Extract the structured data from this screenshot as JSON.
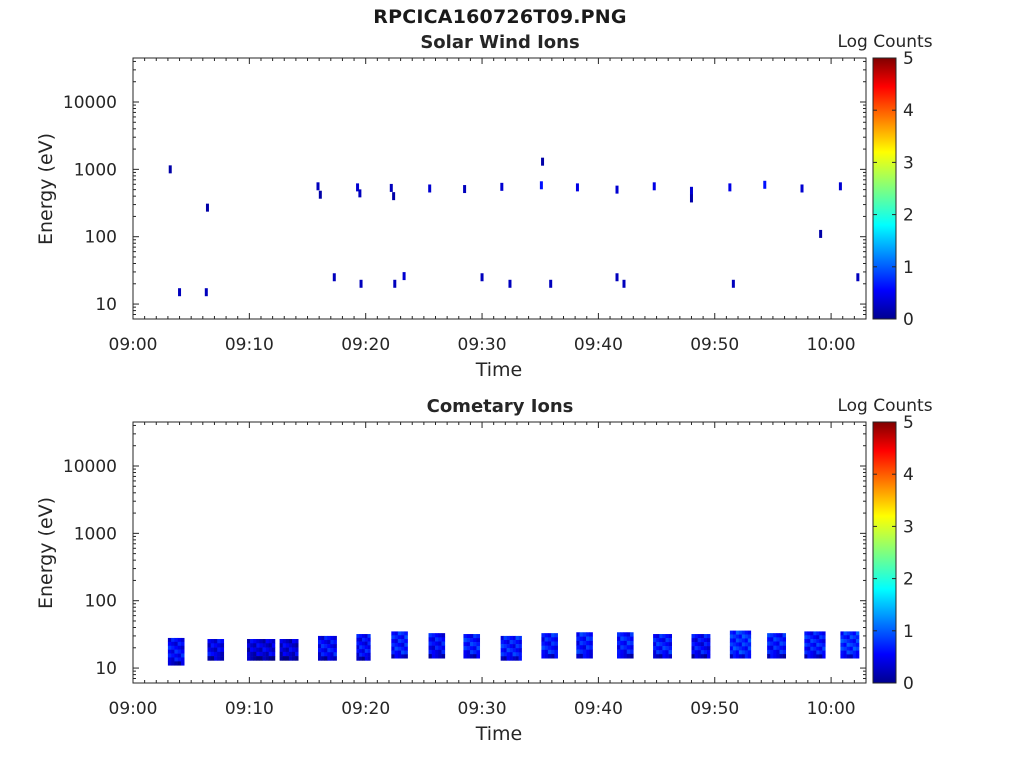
{
  "figure_title": "RPCICA160726T09.PNG",
  "chart_data": [
    {
      "type": "heatmap",
      "title": "Solar Wind Ions",
      "xlabel": "Time",
      "ylabel": "Energy (eV)",
      "xlim": [
        "09:00",
        "10:03"
      ],
      "ylim": [
        6,
        45000
      ],
      "y_scale": "log",
      "x_ticks": [
        "09:00",
        "09:10",
        "09:20",
        "09:30",
        "09:40",
        "09:50",
        "10:00"
      ],
      "y_ticks": [
        "10",
        "100",
        "1000",
        "10000"
      ],
      "grid": false,
      "colorbar": {
        "label": "Log Counts",
        "min": 0,
        "max": 5,
        "ticks": [
          "0",
          "1",
          "2",
          "3",
          "4",
          "5"
        ],
        "colormap": "jet"
      },
      "points": [
        {
          "t": "09:03.2",
          "e": 1000,
          "v": 0.2
        },
        {
          "t": "09:04.0",
          "e": 15,
          "v": 0.3
        },
        {
          "t": "09:06.3",
          "e": 15,
          "v": 0.3
        },
        {
          "t": "09:06.4",
          "e": 270,
          "v": 0.2
        },
        {
          "t": "09:15.9",
          "e": 560,
          "v": 0.3
        },
        {
          "t": "09:16.1",
          "e": 420,
          "v": 0.2
        },
        {
          "t": "09:17.3",
          "e": 25,
          "v": 0.3
        },
        {
          "t": "09:19.3",
          "e": 540,
          "v": 0.4
        },
        {
          "t": "09:19.5",
          "e": 440,
          "v": 0.3
        },
        {
          "t": "09:19.6",
          "e": 20,
          "v": 0.3
        },
        {
          "t": "09:22.2",
          "e": 530,
          "v": 0.3
        },
        {
          "t": "09:22.4",
          "e": 400,
          "v": 0.2
        },
        {
          "t": "09:22.5",
          "e": 20,
          "v": 0.3
        },
        {
          "t": "09:23.3",
          "e": 26,
          "v": 0.4
        },
        {
          "t": "09:25.5",
          "e": 520,
          "v": 0.4
        },
        {
          "t": "09:28.5",
          "e": 510,
          "v": 0.3
        },
        {
          "t": "09:30.0",
          "e": 25,
          "v": 0.3
        },
        {
          "t": "09:31.7",
          "e": 550,
          "v": 0.4
        },
        {
          "t": "09:32.4",
          "e": 20,
          "v": 0.3
        },
        {
          "t": "09:35.1",
          "e": 580,
          "v": 0.7
        },
        {
          "t": "09:35.2",
          "e": 1300,
          "v": 0.2
        },
        {
          "t": "09:35.9",
          "e": 20,
          "v": 0.3
        },
        {
          "t": "09:38.2",
          "e": 540,
          "v": 0.5
        },
        {
          "t": "09:41.6",
          "e": 500,
          "v": 0.4
        },
        {
          "t": "09:41.6",
          "e": 25,
          "v": 0.3
        },
        {
          "t": "09:42.2",
          "e": 20,
          "v": 0.3
        },
        {
          "t": "09:44.8",
          "e": 560,
          "v": 0.5
        },
        {
          "t": "09:48.0",
          "e": 480,
          "v": 0.4
        },
        {
          "t": "09:48.0",
          "e": 370,
          "v": 0.2
        },
        {
          "t": "09:51.3",
          "e": 540,
          "v": 0.5
        },
        {
          "t": "09:51.6",
          "e": 20,
          "v": 0.3
        },
        {
          "t": "09:54.3",
          "e": 590,
          "v": 0.7
        },
        {
          "t": "09:57.5",
          "e": 520,
          "v": 0.4
        },
        {
          "t": "09:59.1",
          "e": 110,
          "v": 0.2
        },
        {
          "t": "10:00.8",
          "e": 560,
          "v": 0.4
        },
        {
          "t": "10:02.3",
          "e": 25,
          "v": 0.3
        }
      ]
    },
    {
      "type": "heatmap",
      "title": "Cometary Ions",
      "xlabel": "Time",
      "ylabel": "Energy (eV)",
      "xlim": [
        "09:00",
        "10:03"
      ],
      "ylim": [
        6,
        45000
      ],
      "y_scale": "log",
      "x_ticks": [
        "09:00",
        "09:10",
        "09:20",
        "09:30",
        "09:40",
        "09:50",
        "10:00"
      ],
      "y_ticks": [
        "10",
        "100",
        "1000",
        "10000"
      ],
      "grid": false,
      "colorbar": {
        "label": "Log Counts",
        "min": 0,
        "max": 5,
        "ticks": [
          "0",
          "1",
          "2",
          "3",
          "4",
          "5"
        ],
        "colormap": "jet"
      },
      "blocks": [
        {
          "start": "09:03.0",
          "end": "09:04.4",
          "emin": 11,
          "emax": 28,
          "v": 0.6
        },
        {
          "start": "09:06.4",
          "end": "09:07.8",
          "emin": 13,
          "emax": 27,
          "v": 0.5
        },
        {
          "start": "09:09.8",
          "end": "09:12.2",
          "emin": 13,
          "emax": 27,
          "v": 0.4
        },
        {
          "start": "09:12.6",
          "end": "09:14.2",
          "emin": 13,
          "emax": 27,
          "v": 0.4
        },
        {
          "start": "09:15.9",
          "end": "09:17.5",
          "emin": 13,
          "emax": 30,
          "v": 0.6
        },
        {
          "start": "09:19.2",
          "end": "09:20.4",
          "emin": 13,
          "emax": 32,
          "v": 0.6
        },
        {
          "start": "09:22.2",
          "end": "09:23.6",
          "emin": 14,
          "emax": 35,
          "v": 0.7
        },
        {
          "start": "09:25.4",
          "end": "09:26.8",
          "emin": 14,
          "emax": 33,
          "v": 0.6
        },
        {
          "start": "09:28.4",
          "end": "09:29.8",
          "emin": 14,
          "emax": 32,
          "v": 0.7
        },
        {
          "start": "09:31.6",
          "end": "09:33.4",
          "emin": 13,
          "emax": 30,
          "v": 0.7
        },
        {
          "start": "09:35.1",
          "end": "09:36.5",
          "emin": 14,
          "emax": 33,
          "v": 0.7
        },
        {
          "start": "09:38.1",
          "end": "09:39.5",
          "emin": 14,
          "emax": 34,
          "v": 0.7
        },
        {
          "start": "09:41.6",
          "end": "09:43.0",
          "emin": 14,
          "emax": 34,
          "v": 0.7
        },
        {
          "start": "09:44.7",
          "end": "09:46.3",
          "emin": 14,
          "emax": 32,
          "v": 0.7
        },
        {
          "start": "09:48.0",
          "end": "09:49.6",
          "emin": 14,
          "emax": 32,
          "v": 0.6
        },
        {
          "start": "09:51.3",
          "end": "09:53.1",
          "emin": 14,
          "emax": 36,
          "v": 0.8
        },
        {
          "start": "09:54.5",
          "end": "09:56.1",
          "emin": 14,
          "emax": 33,
          "v": 0.7
        },
        {
          "start": "09:57.7",
          "end": "09:59.5",
          "emin": 14,
          "emax": 35,
          "v": 0.7
        },
        {
          "start": "10:00.8",
          "end": "10:02.4",
          "emin": 14,
          "emax": 35,
          "v": 0.8
        }
      ]
    }
  ]
}
